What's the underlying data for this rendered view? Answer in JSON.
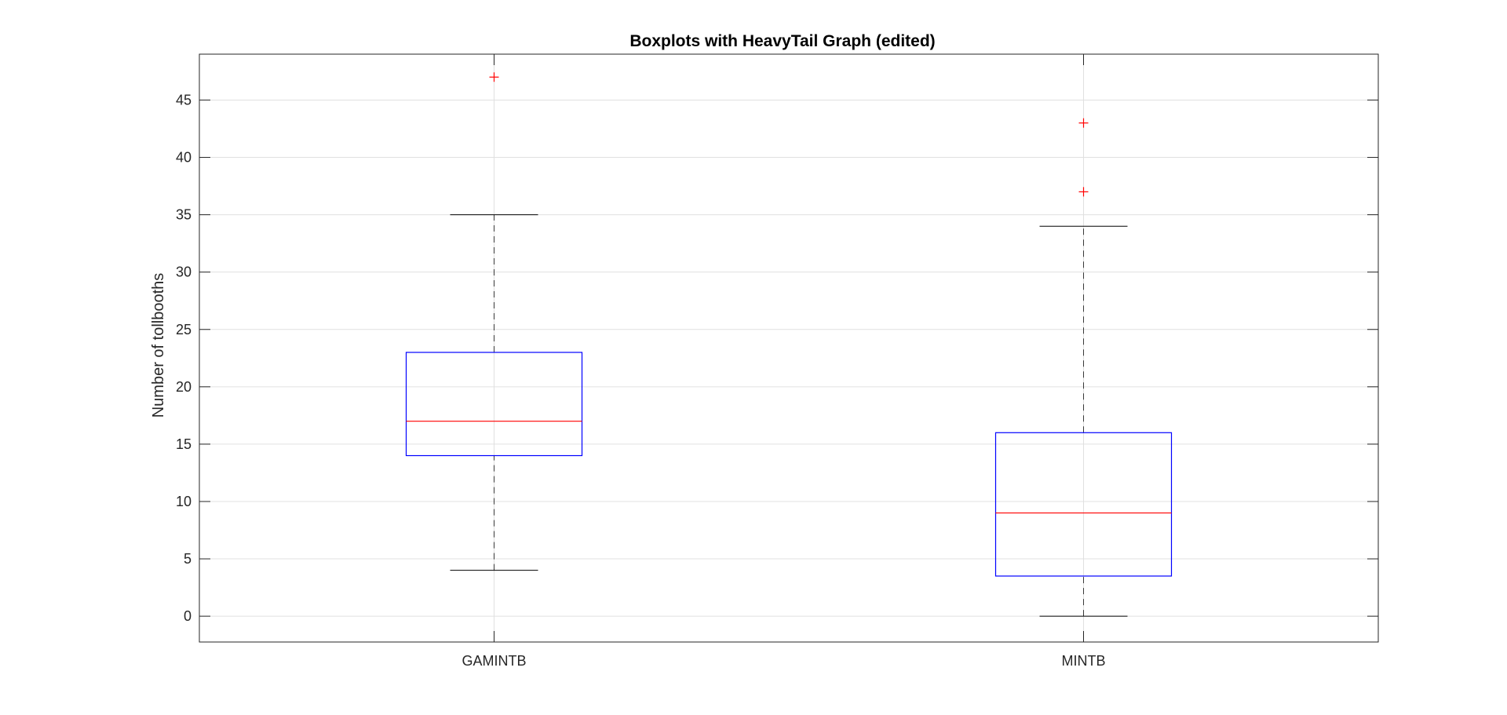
{
  "chart_data": {
    "type": "boxplot",
    "title": "Boxplots with HeavyTail Graph (edited)",
    "xlabel": "",
    "ylabel": "Number of tollbooths",
    "ylim": [
      -2.25,
      49
    ],
    "yticks": [
      0,
      5,
      10,
      15,
      20,
      25,
      30,
      35,
      40,
      45
    ],
    "grid": true,
    "categories": [
      "GAMINTB",
      "MINTB"
    ],
    "boxes": [
      {
        "category": "GAMINTB",
        "whisker_low": 4,
        "q1": 14,
        "median": 17,
        "q3": 23,
        "whisker_high": 35,
        "outliers": [
          47
        ]
      },
      {
        "category": "MINTB",
        "whisker_low": 0,
        "q1": 3.5,
        "median": 9,
        "q3": 16,
        "whisker_high": 34,
        "outliers": [
          37,
          43
        ]
      }
    ],
    "colors": {
      "box": "#0000ff",
      "median": "#ff0000",
      "outlier": "#ff0000",
      "whisker": "#000000",
      "grid": "#e0e0e0",
      "axes": "#262626"
    }
  }
}
